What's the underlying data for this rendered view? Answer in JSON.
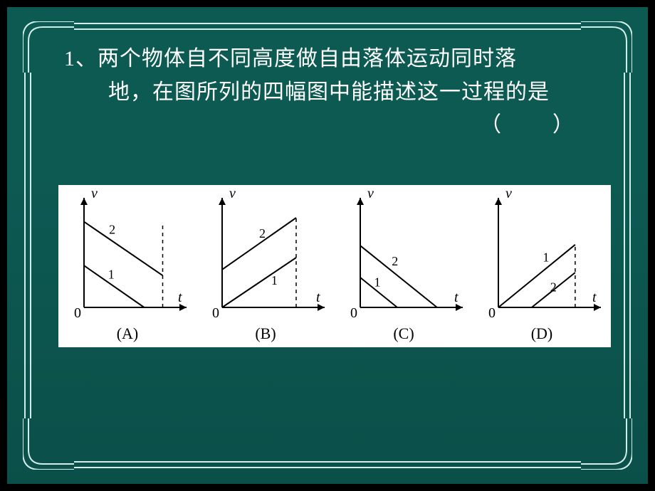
{
  "slide": {
    "bg_top": "#0d5a53",
    "bg_bottom": "#0b4f49",
    "frame_color": "#cfeee9",
    "text_color": "#ffffff"
  },
  "question": {
    "line1": "1、两个物体自不同高度做自由落体运动同时落",
    "line2": "地，在图所列的四幅图中能描述这一过程的是",
    "line3": "（　　）",
    "fontsize": 30
  },
  "axes": {
    "x_label": "t",
    "y_label": "v",
    "origin_label": "0",
    "color": "#000000",
    "line_width": 2,
    "font_style": "italic",
    "font_family": "Times New Roman",
    "label_fontsize": 20
  },
  "series_labels": {
    "a": "1",
    "b": "2",
    "label_fontsize": 18
  },
  "panel": {
    "bg": "#ffffff"
  },
  "figures": [
    {
      "id": "A",
      "caption": "(A)",
      "type": "line",
      "xlim": [
        0,
        10
      ],
      "ylim": [
        0,
        10
      ],
      "dash_line": {
        "x": 8.5,
        "y1": 0,
        "y2": 8.5
      },
      "curves": [
        {
          "label_ref": "a",
          "points": [
            [
              0,
              4.2
            ],
            [
              6.5,
              0
            ]
          ],
          "label_pos": [
            2.6,
            2.9
          ]
        },
        {
          "label_ref": "b",
          "points": [
            [
              0,
              8.6
            ],
            [
              8.5,
              3.2
            ]
          ],
          "label_pos": [
            2.7,
            7.4
          ]
        }
      ]
    },
    {
      "id": "B",
      "caption": "(B)",
      "type": "line",
      "xlim": [
        0,
        10
      ],
      "ylim": [
        0,
        10
      ],
      "dash_line": {
        "x": 8.0,
        "y1": 0,
        "y2": 9.0
      },
      "curves": [
        {
          "label_ref": "a",
          "points": [
            [
              0,
              0
            ],
            [
              8.0,
              5.0
            ]
          ],
          "label_pos": [
            5.3,
            2.3
          ]
        },
        {
          "label_ref": "b",
          "points": [
            [
              0,
              3.8
            ],
            [
              8.0,
              9.0
            ]
          ],
          "label_pos": [
            4.0,
            7.0
          ]
        }
      ]
    },
    {
      "id": "C",
      "caption": "(C)",
      "type": "line",
      "xlim": [
        0,
        10
      ],
      "ylim": [
        0,
        10
      ],
      "curves": [
        {
          "label_ref": "a",
          "points": [
            [
              0,
              3.0
            ],
            [
              4.0,
              0
            ]
          ],
          "label_pos": [
            1.5,
            2.1
          ]
        },
        {
          "label_ref": "b",
          "points": [
            [
              0,
              6.2
            ],
            [
              8.3,
              0
            ]
          ],
          "label_pos": [
            3.4,
            4.2
          ]
        }
      ]
    },
    {
      "id": "D",
      "caption": "(D)",
      "type": "line",
      "xlim": [
        0,
        10
      ],
      "ylim": [
        0,
        10
      ],
      "dash_line": {
        "x": 8.3,
        "y1": 0,
        "y2": 6.3
      },
      "curves": [
        {
          "label_ref": "a",
          "points": [
            [
              0,
              0
            ],
            [
              8.3,
              6.3
            ]
          ],
          "label_pos": [
            4.8,
            4.6
          ]
        },
        {
          "label_ref": "b",
          "points": [
            [
              3.6,
              0
            ],
            [
              8.3,
              3.5
            ]
          ],
          "label_pos": [
            5.6,
            1.6
          ]
        }
      ]
    }
  ]
}
